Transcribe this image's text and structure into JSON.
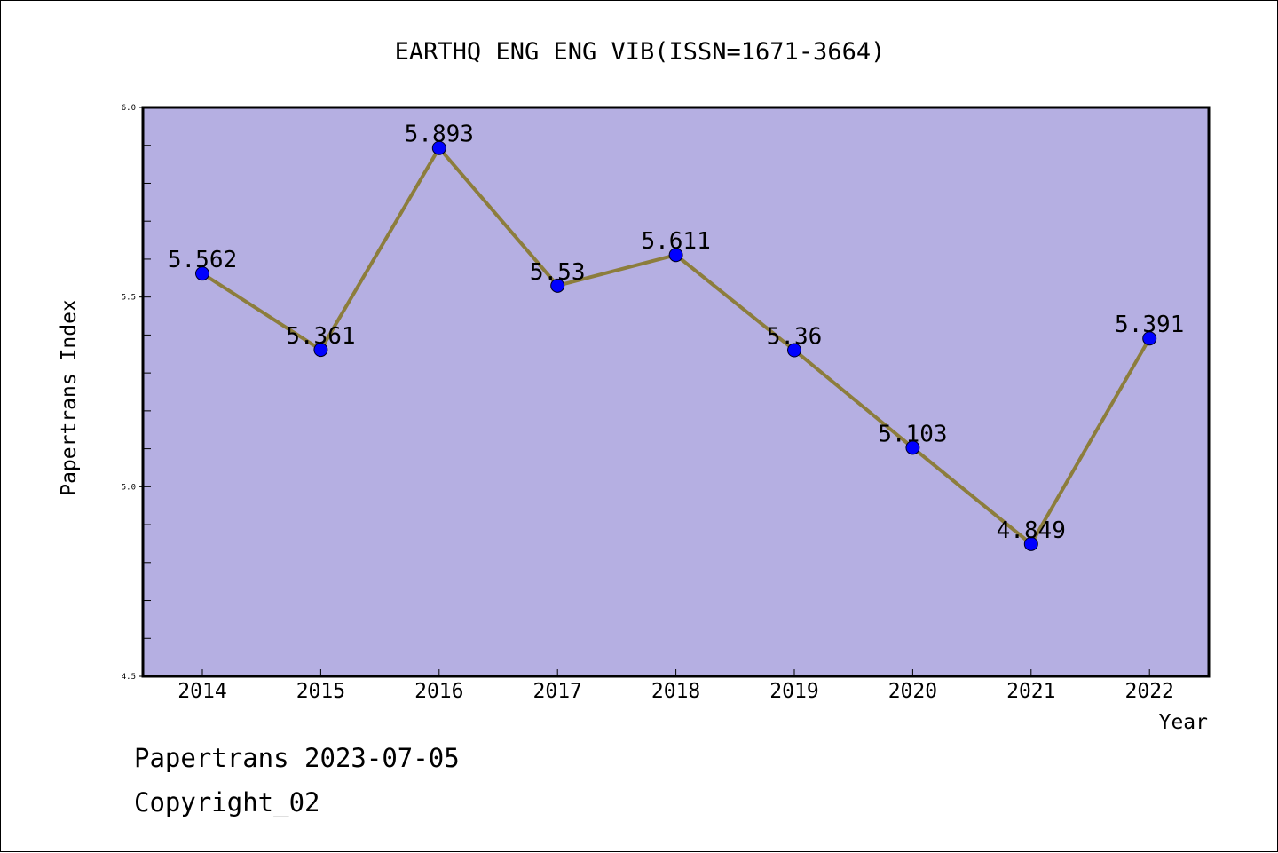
{
  "chart_data": {
    "type": "line",
    "title": "EARTHQ ENG ENG VIB(ISSN=1671-3664)",
    "xlabel": "Year",
    "ylabel": "Papertrans Index",
    "categories": [
      "2014",
      "2015",
      "2016",
      "2017",
      "2018",
      "2019",
      "2020",
      "2021",
      "2022"
    ],
    "series": [
      {
        "values": [
          5.562,
          5.361,
          5.893,
          5.53,
          5.611,
          5.36,
          5.103,
          4.849,
          5.391
        ],
        "data_labels": [
          "5.562",
          "5.361",
          "5.893",
          "5.53",
          "5.611",
          "5.36",
          "5.103",
          "4.849",
          "5.391"
        ]
      }
    ],
    "ylim": [
      4.5,
      6.0
    ],
    "yticks": [
      "4.5",
      "5.0",
      "5.5",
      "6.0"
    ],
    "y_minor_step": 0.1,
    "grid": false,
    "colors": {
      "plot_background": "#b5afe2",
      "line": "#8c7d3c",
      "marker": "#0000ff"
    }
  },
  "footer": {
    "date_text": "Papertrans 2023-07-05",
    "copyright_text": "Copyright_02"
  }
}
